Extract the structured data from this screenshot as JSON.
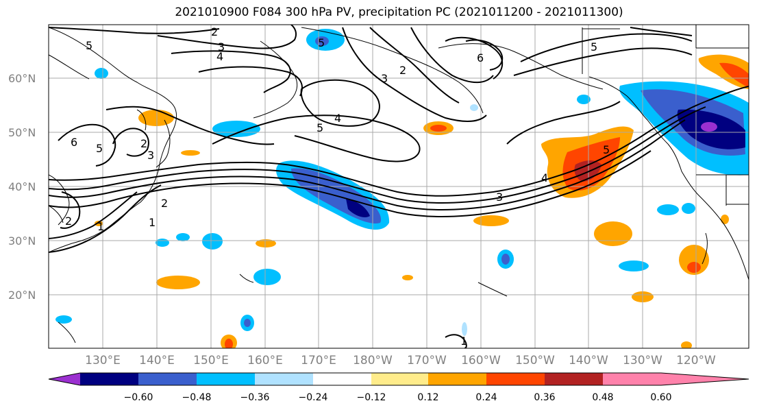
{
  "title": "2021010900 F084 300 hPa PV, precipitation PC (2021011200 - 2021011300)",
  "map": {
    "latitude_labels": [
      "60°N",
      "50°N",
      "40°N",
      "30°N",
      "20°N"
    ],
    "longitude_labels": [
      "130°E",
      "140°E",
      "150°E",
      "160°E",
      "170°E",
      "180°W",
      "170°W",
      "160°W",
      "150°W",
      "140°W",
      "130°W",
      "120°W"
    ],
    "gridlines": true,
    "contour_variable": "300 hPa PV",
    "contour_labels": [
      "2",
      "3",
      "4",
      "5",
      "6",
      "5",
      "3",
      "2",
      "5",
      "4",
      "5",
      "3",
      "4",
      "5",
      "2",
      "3",
      "6",
      "2",
      "1",
      "2",
      "1",
      "5",
      "1"
    ],
    "shading_variable": "precipitation PC"
  },
  "colorbar": {
    "tick_labels": [
      "−0.60",
      "−0.48",
      "−0.36",
      "−0.24",
      "−0.12",
      "0.12",
      "0.24",
      "0.36",
      "0.48",
      "0.60"
    ],
    "colors": [
      "#9b30d0",
      "#000080",
      "#3a5fcd",
      "#00bfff",
      "#b0e2ff",
      "#ffffff",
      "#ffec8b",
      "#ffa500",
      "#ff4500",
      "#b22222",
      "#ff82ab"
    ],
    "extend": "both"
  },
  "chart_data": {
    "type": "heatmap",
    "title": "2021010900 F084 300 hPa PV, precipitation PC (2021011200 - 2021011300)",
    "xlabel": "",
    "ylabel": "",
    "xlim": [
      "120°E",
      "115°W"
    ],
    "ylim": [
      10,
      70
    ],
    "levels": [
      -0.6,
      -0.48,
      -0.36,
      -0.24,
      -0.12,
      0.12,
      0.24,
      0.36,
      0.48,
      0.6
    ],
    "grid": true
  }
}
